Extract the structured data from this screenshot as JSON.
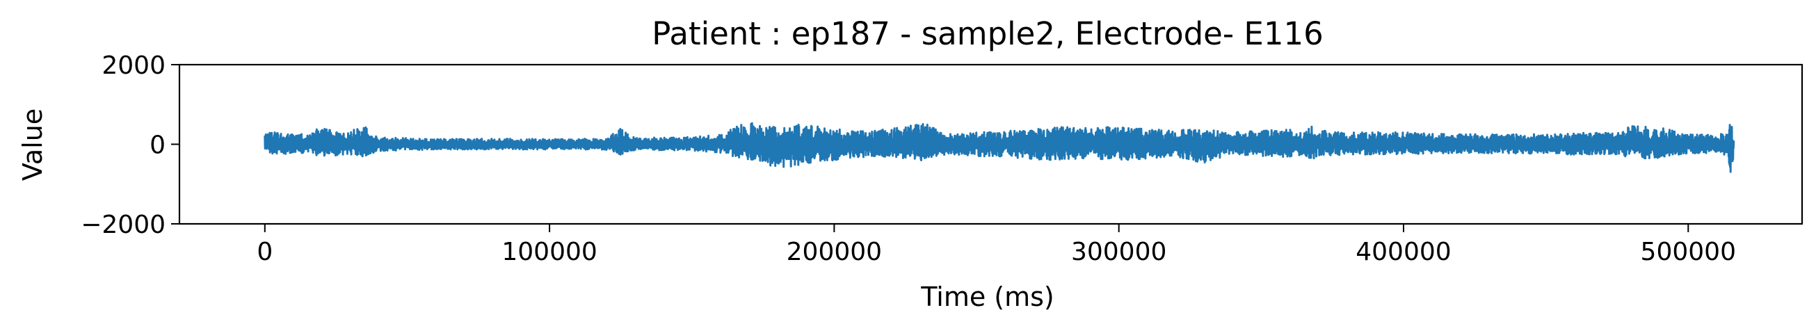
{
  "chart_data": {
    "type": "line",
    "title": "Patient : ep187 - sample2, Electrode- E116",
    "xlabel": "Time (ms)",
    "ylabel": "Value",
    "xlim": [
      -30000,
      540000
    ],
    "ylim": [
      -2000,
      2000
    ],
    "x_ticks": [
      0,
      100000,
      200000,
      300000,
      400000,
      500000
    ],
    "x_tick_labels": [
      "0",
      "100000",
      "200000",
      "300000",
      "400000",
      "500000"
    ],
    "y_ticks": [
      2000,
      0,
      -2000
    ],
    "y_tick_labels": [
      "2000",
      "0",
      "−2000"
    ],
    "grid": false,
    "legend": "none",
    "series": [
      {
        "color": "#1f77b4",
        "x_range": [
          0,
          516000
        ],
        "baseline": 0,
        "envelope": {
          "x": [
            0,
            1000,
            2000,
            5000,
            10000,
            15000,
            20000,
            25000,
            30000,
            35000,
            40000,
            60000,
            80000,
            100000,
            120000,
            125000,
            130000,
            150000,
            160000,
            165000,
            170000,
            175000,
            180000,
            185000,
            190000,
            200000,
            210000,
            220000,
            230000,
            240000,
            250000,
            260000,
            270000,
            280000,
            290000,
            300000,
            310000,
            320000,
            330000,
            340000,
            350000,
            360000,
            365000,
            367000,
            370000,
            380000,
            400000,
            420000,
            440000,
            460000,
            475000,
            480000,
            490000,
            500000,
            510000,
            514000,
            515000,
            516000
          ],
          "upper": [
            300,
            250,
            320,
            300,
            250,
            260,
            440,
            300,
            330,
            450,
            180,
            130,
            140,
            130,
            140,
            420,
            160,
            180,
            250,
            420,
            580,
            450,
            440,
            520,
            500,
            380,
            350,
            380,
            580,
            260,
            300,
            330,
            380,
            460,
            400,
            470,
            380,
            350,
            400,
            300,
            350,
            380,
            300,
            500,
            350,
            300,
            300,
            250,
            260,
            300,
            280,
            460,
            420,
            260,
            240,
            300,
            600,
            200
          ],
          "lower": [
            -250,
            -200,
            -270,
            -250,
            -230,
            -250,
            -300,
            -280,
            -260,
            -320,
            -170,
            -130,
            -130,
            -130,
            -140,
            -260,
            -150,
            -160,
            -220,
            -330,
            -420,
            -500,
            -600,
            -560,
            -480,
            -400,
            -330,
            -320,
            -420,
            -260,
            -300,
            -320,
            -380,
            -420,
            -350,
            -420,
            -360,
            -330,
            -500,
            -260,
            -300,
            -320,
            -280,
            -420,
            -300,
            -260,
            -260,
            -220,
            -230,
            -260,
            -250,
            -360,
            -350,
            -230,
            -220,
            -300,
            -1150,
            -200
          ]
        }
      }
    ]
  }
}
